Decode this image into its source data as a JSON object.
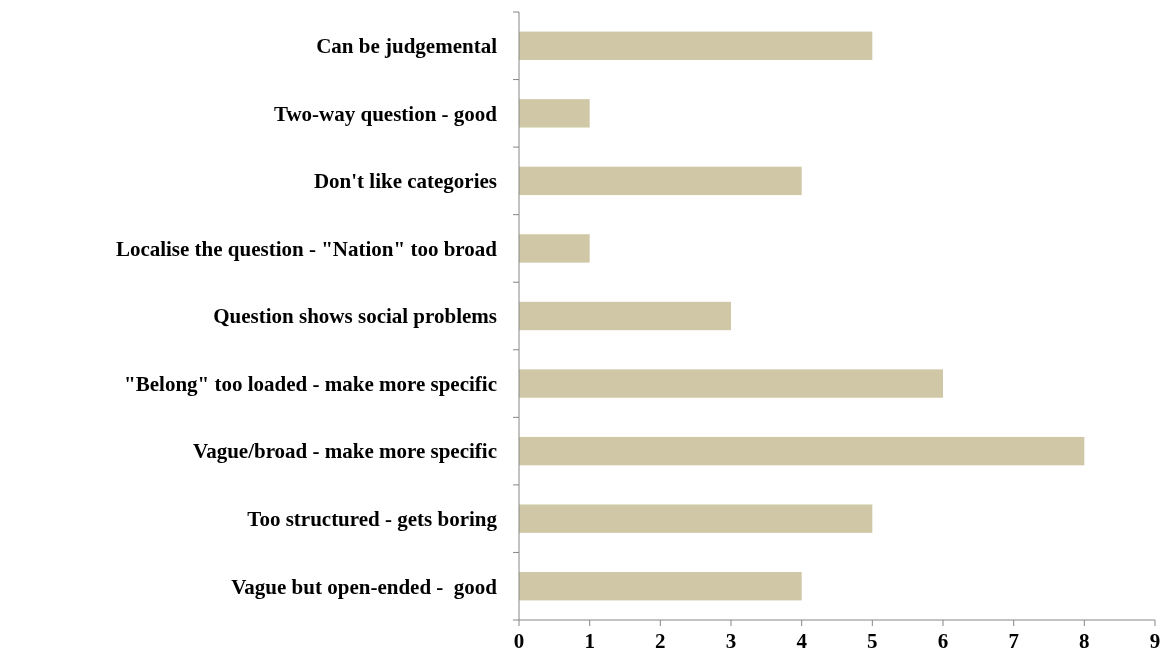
{
  "chart_data": {
    "type": "bar",
    "orientation": "horizontal",
    "categories": [
      "Can be judgemental",
      "Two-way question - good",
      "Don't like categories",
      "Localise the question - \"Nation\" too broad",
      "Question shows social problems",
      "\"Belong\" too loaded - make more specific",
      "Vague/broad - make more specific",
      "Too structured - gets boring",
      "Vague but open-ended -  good"
    ],
    "values": [
      5,
      1,
      4,
      1,
      3,
      6,
      8,
      5,
      4
    ],
    "color": "#cfc7a5",
    "xlim": [
      0,
      9
    ],
    "xticks": [
      0,
      1,
      2,
      3,
      4,
      5,
      6,
      7,
      8,
      9
    ]
  }
}
